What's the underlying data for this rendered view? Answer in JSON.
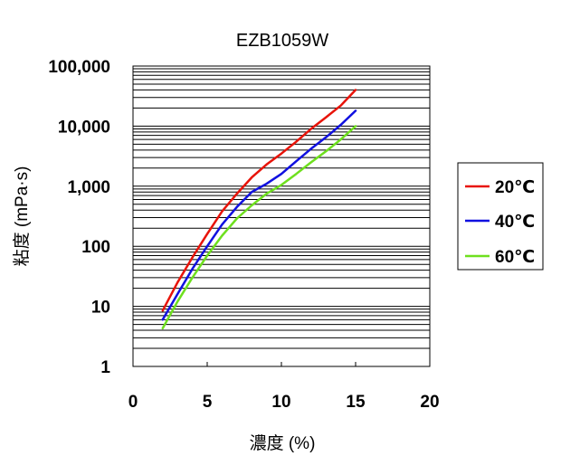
{
  "chart_data": {
    "type": "line",
    "title": "EZB1059W",
    "xlabel": "濃度 (%)",
    "ylabel": "粘度 (mPa·s)",
    "xlim": [
      0,
      20
    ],
    "ylim": [
      1,
      100000
    ],
    "yscale": "log",
    "x_ticks": [
      0,
      5,
      10,
      15,
      20
    ],
    "x_tick_labels": [
      "0",
      "5",
      "10",
      "15",
      "20"
    ],
    "y_ticks": [
      1,
      10,
      100,
      1000,
      10000,
      100000
    ],
    "y_tick_labels": [
      "1",
      "10",
      "100",
      "1,000",
      "10,000",
      "100,000"
    ],
    "grid": "horizontal-minor",
    "legend_position": "right",
    "series": [
      {
        "name": "20℃",
        "color": "#e8140a",
        "x": [
          2,
          3,
          4,
          5,
          6,
          7,
          8,
          9,
          10,
          11,
          12,
          13,
          14,
          15
        ],
        "y": [
          8.5,
          25,
          65,
          160,
          380,
          750,
          1400,
          2300,
          3500,
          5500,
          9000,
          14000,
          22000,
          40000
        ]
      },
      {
        "name": "40℃",
        "color": "#1010e0",
        "x": [
          2,
          3,
          4,
          5,
          6,
          7,
          8,
          9,
          10,
          11,
          12,
          13,
          14,
          15
        ],
        "y": [
          6,
          16,
          42,
          100,
          230,
          450,
          800,
          1100,
          1600,
          2600,
          4200,
          6500,
          10500,
          18000
        ]
      },
      {
        "name": "60℃",
        "color": "#6ee01e",
        "x": [
          2,
          3,
          4,
          5,
          6,
          7,
          8,
          9,
          10,
          11,
          12,
          13,
          14,
          15
        ],
        "y": [
          4.3,
          12,
          30,
          70,
          150,
          290,
          480,
          750,
          1050,
          1600,
          2500,
          3800,
          6000,
          10000
        ]
      }
    ]
  }
}
